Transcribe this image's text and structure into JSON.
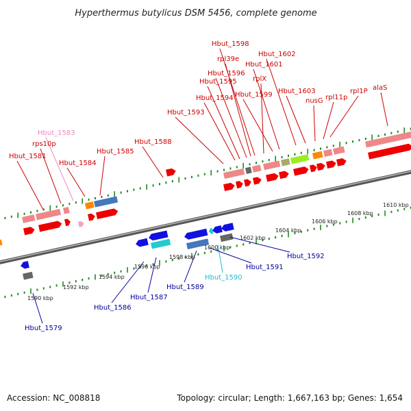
{
  "title": "Hyperthermus butylicus DSM 5456, complete genome",
  "footer": {
    "accession": "Accession: NC_008818",
    "summary": "Topology: circular; Length: 1,667,163 bp; Genes: 1,654"
  },
  "colors": {
    "forward_cds": "#ee0000",
    "rna": "#ee8888",
    "reverse_cds": "#1111dd",
    "grey_feature": "#666666",
    "cyan_feature": "#22cccc",
    "blue_feature": "#4477bb",
    "orange_feature": "#ff8800",
    "lime_feature": "#99ee22",
    "tick": "#228822",
    "forward_label": "#cc0000",
    "reverse_label": "#000099",
    "pink_label": "#ee88bb",
    "cyan_label": "#22bbcc"
  },
  "forward_labels": [
    "Hbut_1581",
    "rps10p",
    "Hbut_1583",
    "Hbut_1584",
    "Hbut_1585",
    "Hbut_1588",
    "Hbut_1593",
    "Hbut_1594",
    "Hbut_1595",
    "Hbut_1596",
    "rpl39e",
    "Hbut_1598",
    "rplX",
    "Hbut_1599",
    "Hbut_1601",
    "Hbut_1602",
    "Hbut_1603",
    "nusG",
    "rpl11p",
    "rpl1P",
    "alaS"
  ],
  "reverse_labels": [
    "Hbut_1579",
    "Hbut_1586",
    "Hbut_1587",
    "Hbut_1589",
    "Hbut_1590",
    "Hbut_1591",
    "Hbut_1592"
  ],
  "kbp_labels": [
    "1590 kbp",
    "1592 kbp",
    "1594 kbp",
    "1596 kbp",
    "1598 kbp",
    "1600 kbp",
    "1602 kbp",
    "1604 kbp",
    "1606 kbp",
    "1608 kbp",
    "1610 kbp"
  ]
}
